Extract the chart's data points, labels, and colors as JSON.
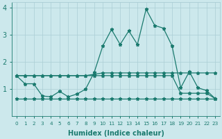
{
  "xlabel": "Humidex (Indice chaleur)",
  "bg_color": "#cce8ec",
  "line_color": "#1a7a6e",
  "grid_color": "#aacdd4",
  "xlim": [
    -0.5,
    23.5
  ],
  "ylim": [
    0,
    4.2
  ],
  "xticks": [
    0,
    1,
    2,
    3,
    4,
    5,
    6,
    7,
    8,
    9,
    10,
    11,
    12,
    13,
    14,
    15,
    16,
    17,
    18,
    19,
    20,
    21,
    22,
    23
  ],
  "yticks": [
    1,
    2,
    3,
    4
  ],
  "line_top_x": [
    0,
    1,
    2,
    3,
    4,
    5,
    6,
    7,
    8,
    9,
    10,
    11,
    12,
    13,
    14,
    15,
    16,
    17,
    18,
    19,
    20,
    21,
    22,
    23
  ],
  "line_top_y": [
    1.5,
    1.5,
    1.5,
    1.5,
    1.5,
    1.5,
    1.5,
    1.5,
    1.5,
    1.55,
    1.6,
    1.6,
    1.6,
    1.6,
    1.6,
    1.6,
    1.6,
    1.6,
    1.6,
    1.6,
    1.6,
    1.6,
    1.6,
    1.6
  ],
  "line_mid_x": [
    0,
    1,
    2,
    3,
    4,
    5,
    6,
    7,
    8,
    9,
    10,
    11,
    12,
    13,
    14,
    15,
    16,
    17,
    18,
    19,
    20,
    21,
    22,
    23
  ],
  "line_mid_y": [
    1.5,
    1.5,
    1.5,
    1.5,
    1.5,
    1.5,
    1.5,
    1.5,
    1.5,
    1.5,
    1.5,
    1.5,
    1.5,
    1.5,
    1.5,
    1.5,
    1.5,
    1.5,
    1.5,
    0.85,
    0.85,
    0.85,
    0.85,
    0.65
  ],
  "line_low_x": [
    0,
    1,
    2,
    3,
    4,
    5,
    6,
    7,
    8,
    9,
    10,
    11,
    12,
    13,
    14,
    15,
    16,
    17,
    18,
    19,
    20,
    21,
    22,
    23
  ],
  "line_low_y": [
    0.65,
    0.65,
    0.65,
    0.65,
    0.65,
    0.65,
    0.65,
    0.65,
    0.65,
    0.65,
    0.65,
    0.65,
    0.65,
    0.65,
    0.65,
    0.65,
    0.65,
    0.65,
    0.65,
    0.65,
    0.65,
    0.65,
    0.65,
    0.65
  ],
  "line_main_x": [
    0,
    1,
    2,
    3,
    4,
    5,
    6,
    7,
    8,
    9,
    10,
    11,
    12,
    13,
    14,
    15,
    16,
    17,
    18,
    19,
    20,
    21,
    22,
    23
  ],
  "line_main_y": [
    1.5,
    1.2,
    1.2,
    0.75,
    0.72,
    0.92,
    0.72,
    0.82,
    1.0,
    1.62,
    2.6,
    3.2,
    2.65,
    3.15,
    2.65,
    3.95,
    3.35,
    3.25,
    2.6,
    1.05,
    1.65,
    1.05,
    0.95,
    0.65
  ]
}
